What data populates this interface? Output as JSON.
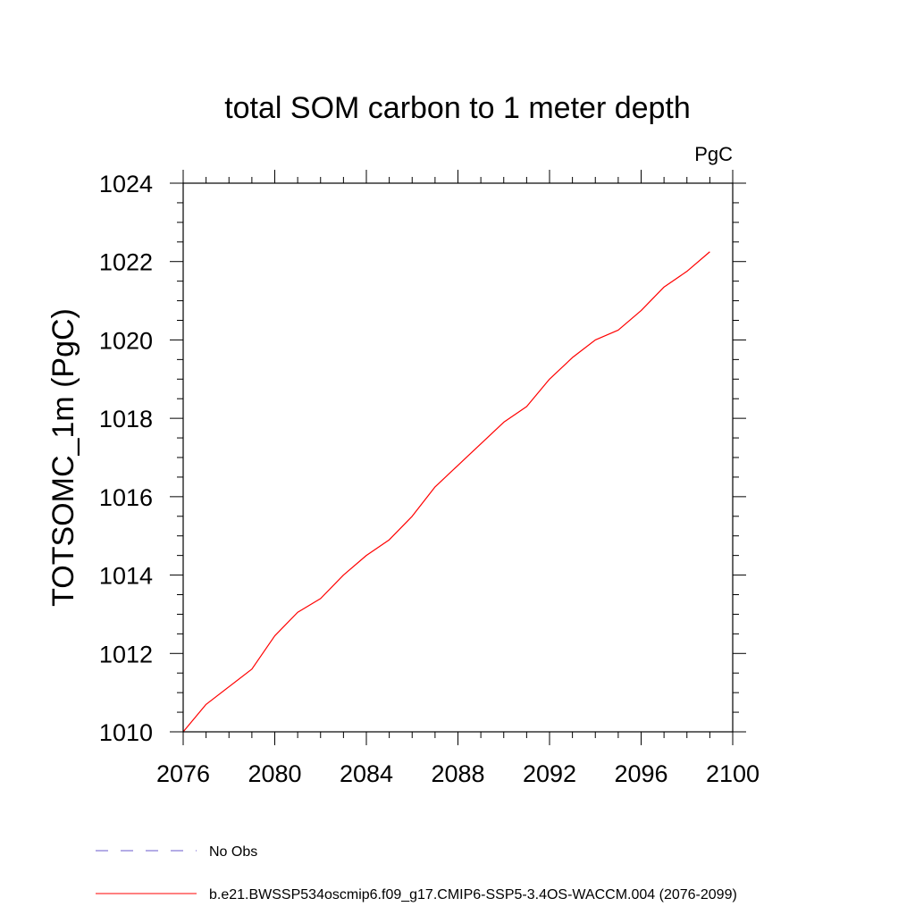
{
  "chart_data": {
    "type": "line",
    "title": "total SOM carbon to 1 meter depth",
    "units_label": "PgC",
    "xlabel": "",
    "ylabel": "TOTSOMC_1m  (PgC)",
    "xlim": [
      2076,
      2100
    ],
    "ylim": [
      1010,
      1024
    ],
    "x_ticks": [
      2076,
      2080,
      2084,
      2088,
      2092,
      2096,
      2100
    ],
    "y_ticks": [
      1010,
      1012,
      1014,
      1016,
      1018,
      1020,
      1022,
      1024
    ],
    "x_minor_step": 1,
    "y_minor_step": 0.5,
    "grid": false,
    "legend_position": "bottom-left",
    "series": [
      {
        "name": "b.e21.BWSSP534oscmip6.f09_g17.CMIP6-SSP5-3.4OS-WACCM.004 (2076-2099)",
        "color": "#ff0000",
        "style": "solid",
        "x": [
          2076,
          2077,
          2078,
          2079,
          2080,
          2081,
          2082,
          2083,
          2084,
          2085,
          2086,
          2087,
          2088,
          2089,
          2090,
          2091,
          2092,
          2093,
          2094,
          2095,
          2096,
          2097,
          2098,
          2099
        ],
        "y": [
          1010.0,
          1010.7,
          1011.15,
          1011.6,
          1012.45,
          1013.05,
          1013.4,
          1014.0,
          1014.5,
          1014.9,
          1015.5,
          1016.25,
          1016.8,
          1017.35,
          1017.9,
          1018.3,
          1019.0,
          1019.55,
          1020.0,
          1020.25,
          1020.75,
          1021.35,
          1021.75,
          1022.25
        ]
      }
    ],
    "legend": [
      {
        "label": "No Obs",
        "color": "#6a5acd",
        "style": "dashed"
      },
      {
        "label": "b.e21.BWSSP534oscmip6.f09_g17.CMIP6-SSP5-3.4OS-WACCM.004 (2076-2099)",
        "color": "#ff0000",
        "style": "solid"
      }
    ]
  }
}
